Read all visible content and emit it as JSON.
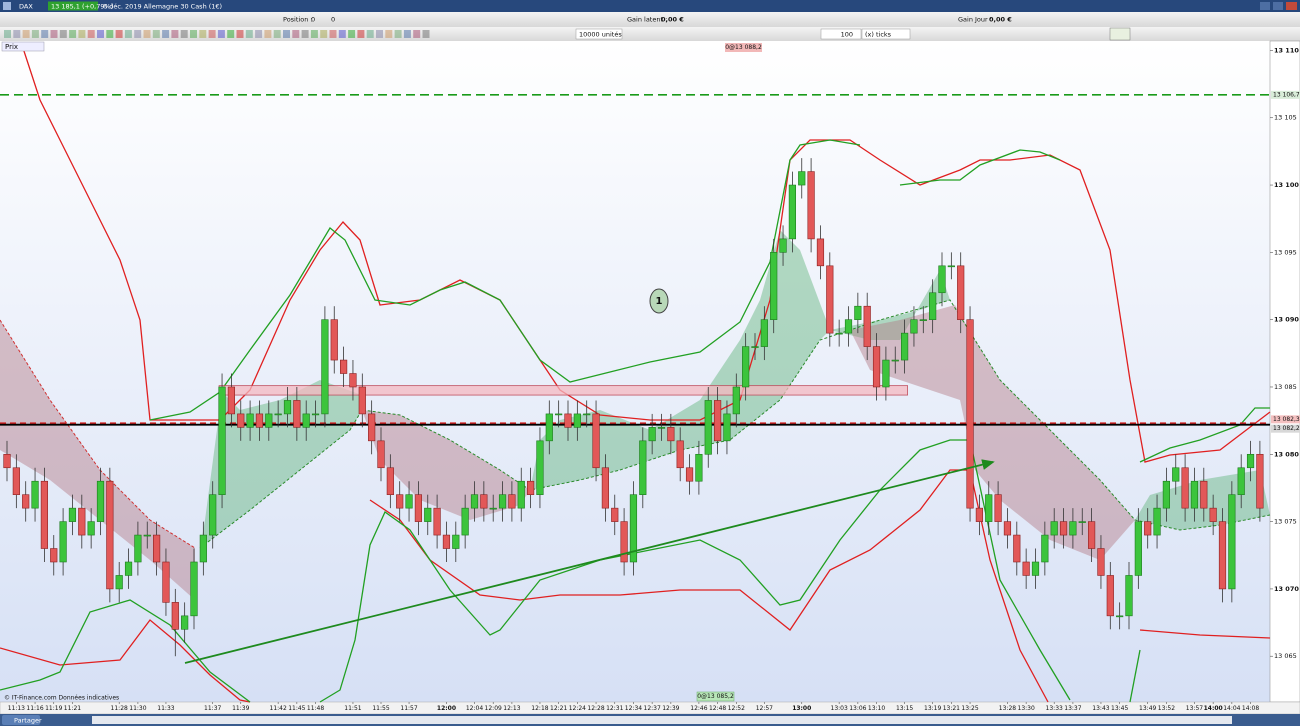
{
  "window": {
    "symbol": "DAX",
    "quote": "13 185,1 (+0,79%)",
    "instrument": "6 déc. 2019 Allemagne 30 Cash (1€)"
  },
  "toolbar": {
    "position_label": "Position :",
    "position": "0",
    "position_2": "0",
    "gain_latent_label": "Gain latent :",
    "gain_latent": "0,00 €",
    "gain_jour_label": "Gain Jour :",
    "gain_jour": "0,00 €",
    "quantity": "10000 unités",
    "ticks_value": "100",
    "ticks_unit": "(x) ticks"
  },
  "chart_data": {
    "type": "candlestick",
    "price_label": "Prix",
    "categories": [
      null,
      "11:13",
      null,
      "11:16",
      null,
      "11:19",
      null,
      "11:21",
      null,
      null,
      null,
      null,
      "11:28",
      null,
      "11:30",
      null,
      null,
      "11:33",
      null,
      null,
      null,
      null,
      "11:37",
      null,
      null,
      "11:39",
      null,
      null,
      null,
      "11:42",
      null,
      "11:45",
      null,
      "11:48",
      null,
      null,
      null,
      "11:51",
      null,
      null,
      "11:55",
      null,
      null,
      "11:57",
      null,
      null,
      null,
      "12:00",
      null,
      null,
      "12:04",
      null,
      "12:09",
      null,
      "12:13",
      null,
      null,
      "12:18",
      null,
      "12:21",
      null,
      "12:24",
      null,
      "12:28",
      null,
      "12:31",
      null,
      "12:34",
      null,
      "12:37",
      null,
      "12:39",
      null,
      null,
      "12:46",
      null,
      "12:48",
      null,
      "12:52",
      null,
      null,
      "12:57",
      null,
      null,
      null,
      "13:00",
      null,
      null,
      null,
      "13:03",
      null,
      "13:06",
      null,
      "13:10",
      null,
      null,
      "13:15",
      null,
      null,
      "13:19",
      null,
      "13:21",
      null,
      "13:25",
      null,
      null,
      null,
      "13:28",
      null,
      "13:30",
      null,
      null,
      "13:33",
      null,
      "13:37",
      null,
      null,
      "13:43",
      null,
      "13:45",
      null,
      null,
      "13:49",
      null,
      "13:52",
      null,
      null,
      "13:57",
      null,
      "14:00",
      null,
      "14:04",
      null,
      "14:08",
      null
    ],
    "open": [
      13080,
      13079,
      13077,
      13076,
      13078,
      13073,
      13072,
      13075,
      13076,
      13074,
      13075,
      13078,
      13070,
      13071,
      13072,
      13074,
      13074,
      13072,
      13069,
      13067,
      13068,
      13072,
      13074,
      13077,
      13085,
      13083,
      13082,
      13083,
      13082,
      13083,
      13083,
      13084,
      13082,
      13083,
      13083,
      13090,
      13087,
      13086,
      13085,
      13083,
      13081,
      13079,
      13077,
      13076,
      13077,
      13075,
      13076,
      13074,
      13073,
      13074,
      13076,
      13077,
      13076,
      13076,
      13077,
      13076,
      13078,
      13077,
      13081,
      13083,
      13083,
      13082,
      13083,
      13083,
      13079,
      13076,
      13075,
      13072,
      13077,
      13081,
      13082,
      13082,
      13081,
      13079,
      13078,
      13080,
      13084,
      13081,
      13083,
      13085,
      13088,
      13088,
      13090,
      13095,
      13096,
      13100,
      13101,
      13096,
      13094,
      13089,
      13089,
      13090,
      13091,
      13088,
      13085,
      13087,
      13087,
      13089,
      13090,
      13090,
      13092,
      13094,
      13094,
      13090,
      13076,
      13075,
      13077,
      13075,
      13074,
      13072,
      13071,
      13072,
      13074,
      13075,
      13074,
      13075,
      13075,
      13073,
      13071,
      13068,
      13068,
      13071,
      13075,
      13074,
      13076,
      13078,
      13079,
      13076,
      13078,
      13076,
      13075,
      13070,
      13077,
      13079,
      13080
    ],
    "high": [
      13081,
      13080,
      13078,
      13079,
      13079,
      13074,
      13076,
      13077,
      13077,
      13076,
      13079,
      13079,
      13072,
      13073,
      13075,
      13075,
      13075,
      13073,
      13070,
      13069,
      13073,
      13075,
      13078,
      13086,
      13086,
      13084,
      13084,
      13084,
      13084,
      13084,
      13085,
      13085,
      13084,
      13084,
      13091,
      13091,
      13088,
      13087,
      13086,
      13084,
      13082,
      13080,
      13078,
      13078,
      13078,
      13077,
      13077,
      13075,
      13075,
      13077,
      13078,
      13078,
      13077,
      13078,
      13078,
      13079,
      13079,
      13082,
      13084,
      13084,
      13084,
      13084,
      13084,
      13084,
      13080,
      13077,
      13076,
      13078,
      13082,
      13083,
      13083,
      13083,
      13082,
      13080,
      13081,
      13085,
      13085,
      13084,
      13086,
      13089,
      13089,
      13091,
      13096,
      13097,
      13101,
      13102,
      13102,
      13097,
      13095,
      13090,
      13091,
      13092,
      13092,
      13089,
      13088,
      13088,
      13090,
      13091,
      13091,
      13093,
      13095,
      13095,
      13095,
      13091,
      13077,
      13078,
      13078,
      13076,
      13075,
      13073,
      13073,
      13075,
      13076,
      13076,
      13076,
      13076,
      13076,
      13074,
      13072,
      13069,
      13072,
      13076,
      13076,
      13077,
      13079,
      13080,
      13080,
      13079,
      13079,
      13077,
      13076,
      13078,
      13080,
      13081,
      13081
    ],
    "low": [
      13078,
      13076,
      13075,
      13075,
      13072,
      13071,
      13071,
      13074,
      13073,
      13073,
      13074,
      13069,
      13069,
      13070,
      13071,
      13073,
      13071,
      13068,
      13065,
      13066,
      13067,
      13071,
      13073,
      13076,
      13082,
      13081,
      13081,
      13081,
      13081,
      13082,
      13082,
      13081,
      13081,
      13082,
      13082,
      13086,
      13085,
      13084,
      13082,
      13080,
      13078,
      13076,
      13075,
      13075,
      13074,
      13074,
      13073,
      13072,
      13072,
      13073,
      13075,
      13075,
      13075,
      13075,
      13075,
      13075,
      13076,
      13076,
      13080,
      13082,
      13081,
      13081,
      13082,
      13078,
      13075,
      13074,
      13071,
      13071,
      13076,
      13080,
      13081,
      13080,
      13078,
      13077,
      13077,
      13079,
      13080,
      13080,
      13082,
      13084,
      13087,
      13087,
      13089,
      13094,
      13095,
      13099,
      13095,
      13093,
      13088,
      13088,
      13088,
      13089,
      13087,
      13084,
      13084,
      13086,
      13086,
      13088,
      13089,
      13089,
      13091,
      13093,
      13089,
      13075,
      13074,
      13074,
      13074,
      13073,
      13071,
      13070,
      13070,
      13071,
      13073,
      13073,
      13073,
      13074,
      13072,
      13070,
      13067,
      13067,
      13067,
      13070,
      13073,
      13073,
      13075,
      13077,
      13075,
      13075,
      13075,
      13074,
      13069,
      13069,
      13076,
      13078,
      13075
    ],
    "close": [
      13079,
      13077,
      13076,
      13078,
      13073,
      13072,
      13075,
      13076,
      13074,
      13075,
      13078,
      13070,
      13071,
      13072,
      13074,
      13074,
      13072,
      13069,
      13067,
      13068,
      13072,
      13074,
      13077,
      13085,
      13083,
      13082,
      13083,
      13082,
      13083,
      13083,
      13084,
      13082,
      13083,
      13083,
      13090,
      13087,
      13086,
      13085,
      13083,
      13081,
      13079,
      13077,
      13076,
      13077,
      13075,
      13076,
      13074,
      13073,
      13074,
      13076,
      13077,
      13076,
      13076,
      13077,
      13076,
      13078,
      13077,
      13081,
      13083,
      13083,
      13082,
      13083,
      13083,
      13079,
      13076,
      13075,
      13072,
      13077,
      13081,
      13082,
      13082,
      13081,
      13079,
      13078,
      13080,
      13084,
      13081,
      13083,
      13085,
      13088,
      13088,
      13090,
      13095,
      13096,
      13100,
      13101,
      13096,
      13094,
      13089,
      13089,
      13090,
      13091,
      13088,
      13085,
      13087,
      13087,
      13089,
      13090,
      13090,
      13092,
      13094,
      13094,
      13090,
      13076,
      13075,
      13077,
      13075,
      13074,
      13072,
      13071,
      13072,
      13074,
      13075,
      13074,
      13075,
      13075,
      13073,
      13071,
      13068,
      13068,
      13071,
      13075,
      13074,
      13076,
      13078,
      13079,
      13076,
      13078,
      13076,
      13075,
      13070,
      13077,
      13079,
      13080,
      13076
    ],
    "up_color": "#3cc43c",
    "down_color": "#e25858",
    "ylim": [
      13061.6,
      13110.7
    ],
    "yticks": [
      {
        "value": 13065,
        "label": "13 065"
      },
      {
        "value": 13070,
        "label": "13 070"
      },
      {
        "value": 13075,
        "label": "13 075"
      },
      {
        "value": 13080,
        "label": "13 080"
      },
      {
        "value": 13085,
        "label": "13 085"
      },
      {
        "value": 13090,
        "label": "13 090"
      },
      {
        "value": 13095,
        "label": "13 095"
      },
      {
        "value": 13100,
        "label": "13 100"
      },
      {
        "value": 13105,
        "label": "13 105"
      },
      {
        "value": 13110,
        "label": "13 110"
      }
    ],
    "levels": [
      {
        "value": 13106.7,
        "label": "13 106,7",
        "color": "#1a9a1a"
      },
      {
        "value": 13082.3,
        "label": "13 082,3",
        "color": "#d42020"
      },
      {
        "value": 13082.2,
        "label": "13 082,2",
        "color": "#000000"
      }
    ],
    "zone": [
      13085.1,
      13084.4
    ],
    "order_top": "0@13 088,2",
    "order_bottom": "0@13 085,2",
    "marker": "1",
    "copyright": "© IT-Finance.com  Données indicatives"
  },
  "status": {
    "share": "Partager"
  }
}
